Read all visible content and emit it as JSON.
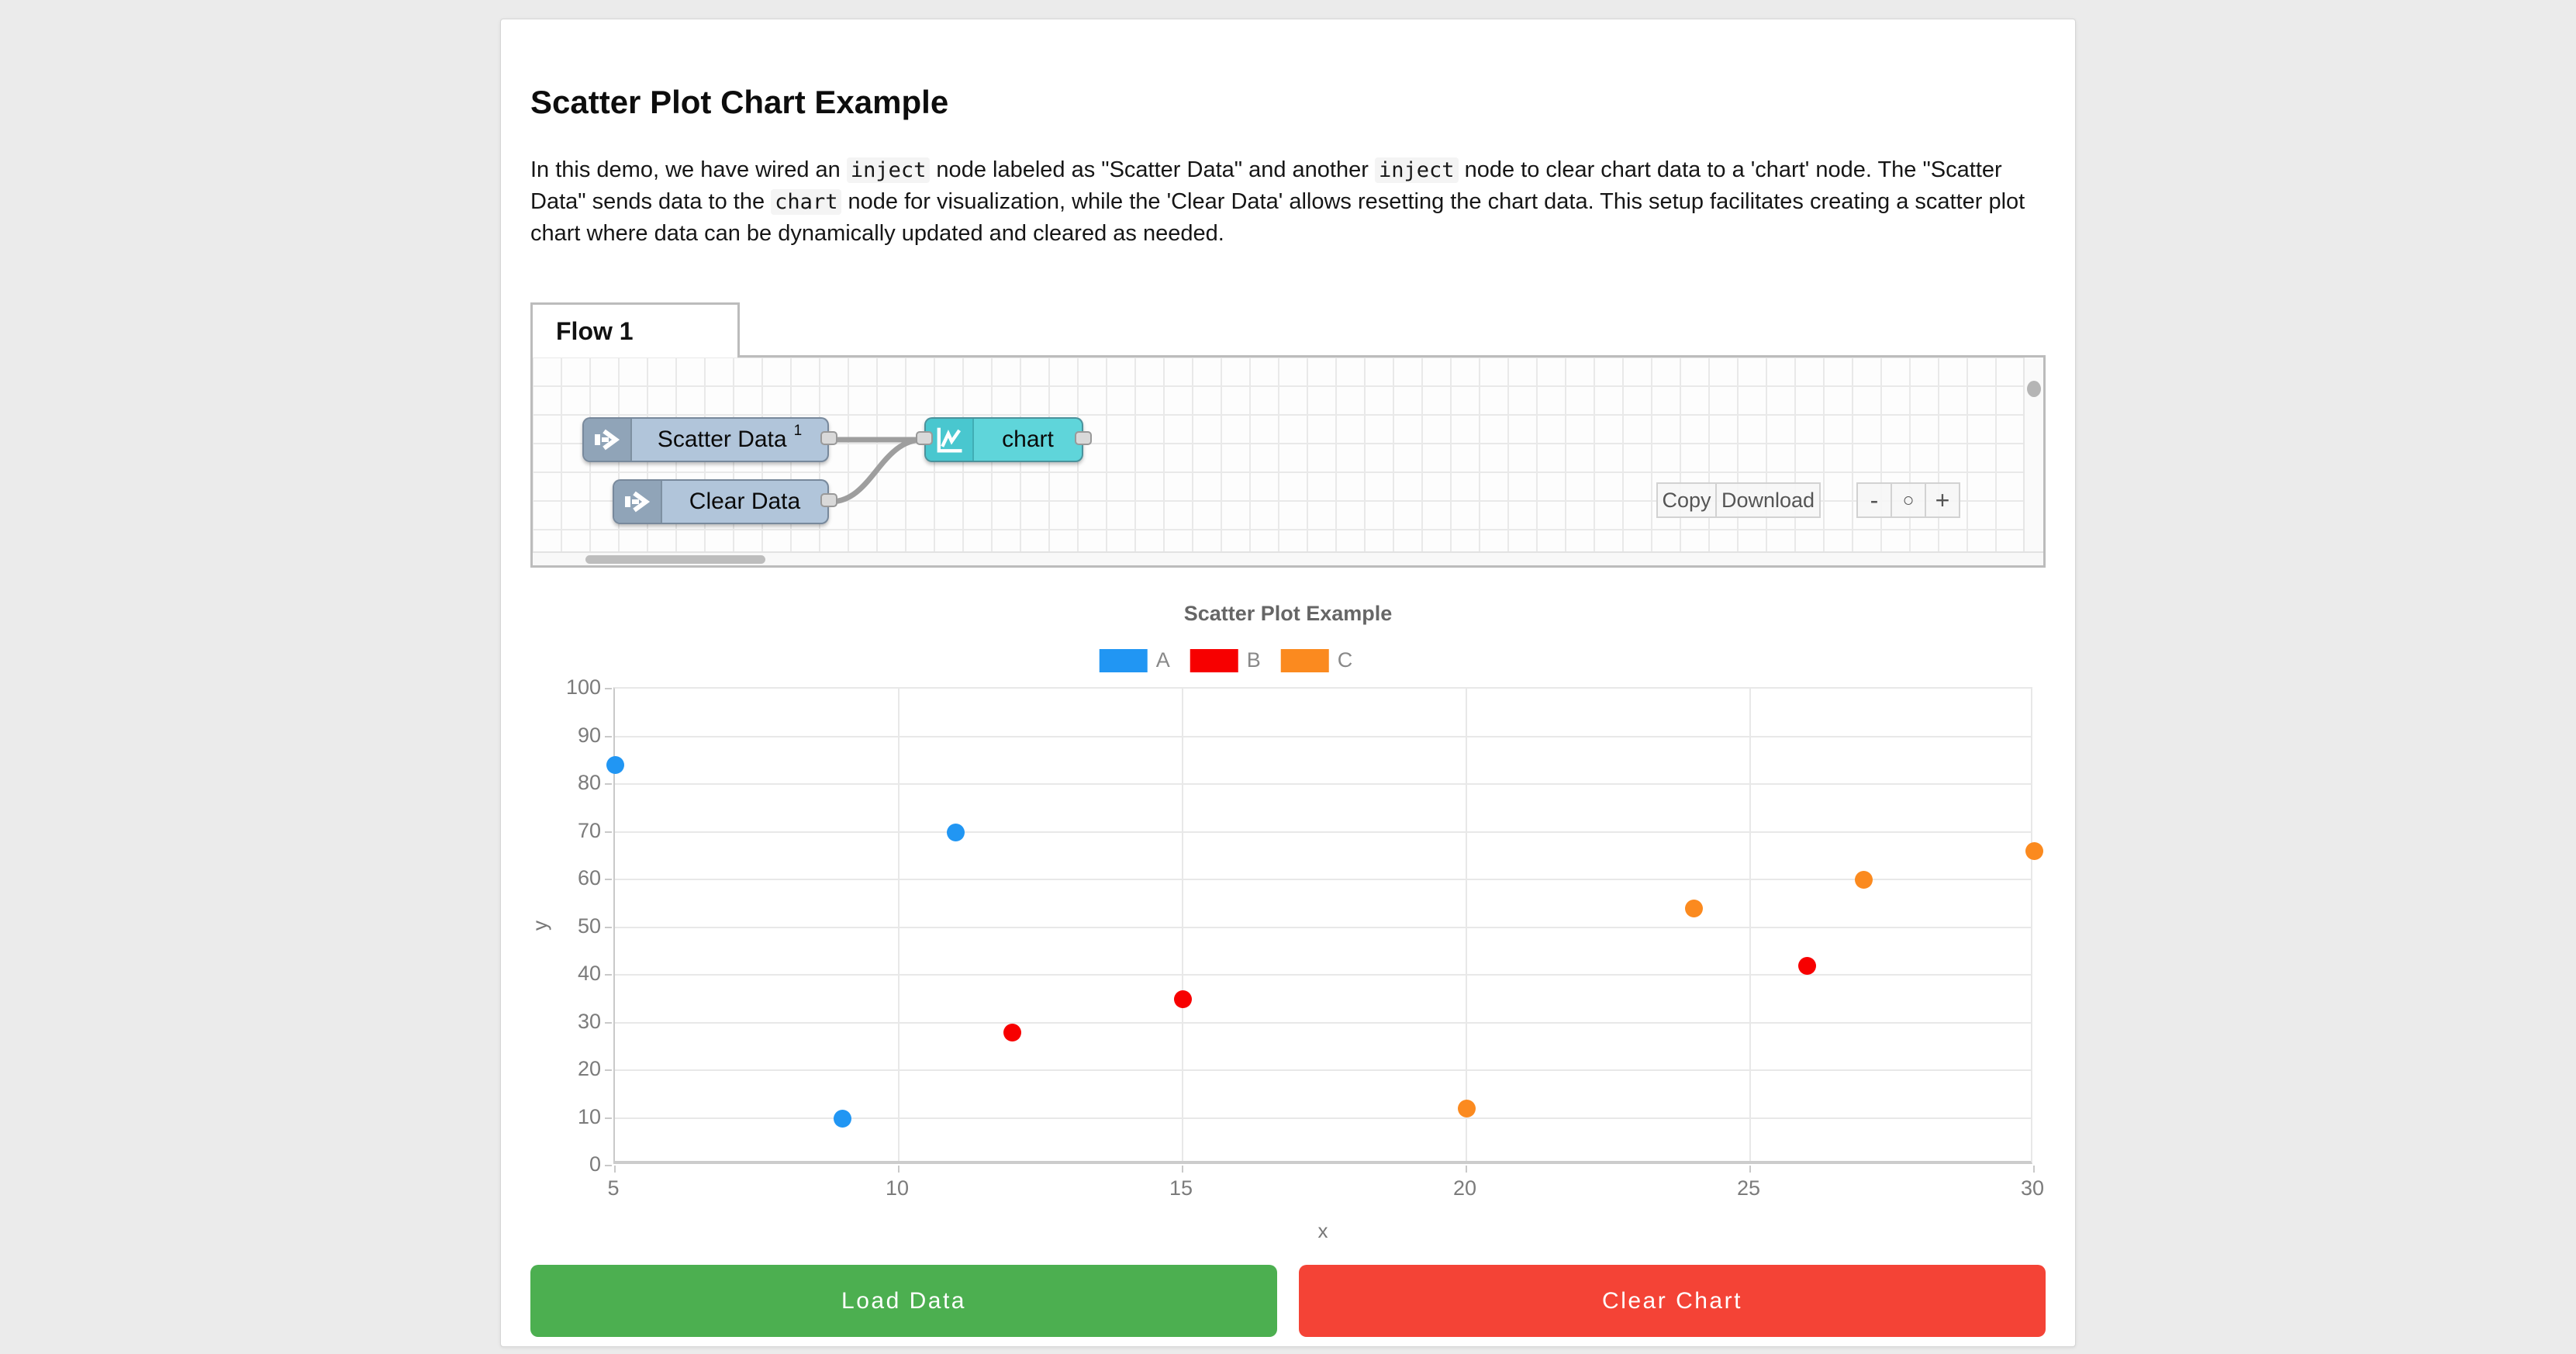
{
  "page": {
    "title": "Scatter Plot Chart Example"
  },
  "description_segments": [
    {
      "t": "text",
      "v": "In this demo, we have wired an "
    },
    {
      "t": "code",
      "v": "inject"
    },
    {
      "t": "text",
      "v": " node labeled as \"Scatter Data\" and another "
    },
    {
      "t": "code",
      "v": "inject"
    },
    {
      "t": "text",
      "v": " node to clear chart data to a 'chart' node. The \"Scatter Data\" sends data to the "
    },
    {
      "t": "code",
      "v": "chart"
    },
    {
      "t": "text",
      "v": " node for visualization, while the 'Clear Data' allows resetting the chart data. This setup facilitates creating a scatter plot chart where data can be dynamically updated and cleared as needed."
    }
  ],
  "flow_editor": {
    "tab_label": "Flow 1",
    "nodes": [
      {
        "label": "Scatter Data",
        "sup": "1",
        "type": "inject"
      },
      {
        "label": "Clear Data",
        "type": "inject"
      },
      {
        "label": "chart",
        "type": "chart"
      }
    ],
    "toolbar": {
      "copy_label": "Copy",
      "download_label": "Download",
      "zoom_out_label": "-",
      "zoom_reset_label": "○",
      "zoom_in_label": "+"
    }
  },
  "chart_data": {
    "type": "scatter",
    "title": "Scatter Plot Example",
    "xlabel": "x",
    "ylabel": "y",
    "xlim": [
      5,
      30
    ],
    "ylim": [
      0,
      100
    ],
    "x_ticks": [
      5,
      10,
      15,
      20,
      25,
      30
    ],
    "y_ticks": [
      0,
      10,
      20,
      30,
      40,
      50,
      60,
      70,
      80,
      90,
      100
    ],
    "grid": true,
    "legend_position": "top",
    "series": [
      {
        "name": "A",
        "color": "#2196f3",
        "points": [
          [
            5,
            84
          ],
          [
            9,
            10
          ],
          [
            11,
            70
          ]
        ]
      },
      {
        "name": "B",
        "color": "#f70000",
        "points": [
          [
            12,
            28
          ],
          [
            15,
            35
          ],
          [
            26,
            42
          ]
        ]
      },
      {
        "name": "C",
        "color": "#fb8a1f",
        "points": [
          [
            20,
            12
          ],
          [
            24,
            54
          ],
          [
            27,
            60
          ],
          [
            30,
            66
          ]
        ]
      }
    ]
  },
  "actions": {
    "load_label": "Load Data",
    "load_color": "#4caf50",
    "clear_label": "Clear Chart",
    "clear_color": "#f44336"
  }
}
